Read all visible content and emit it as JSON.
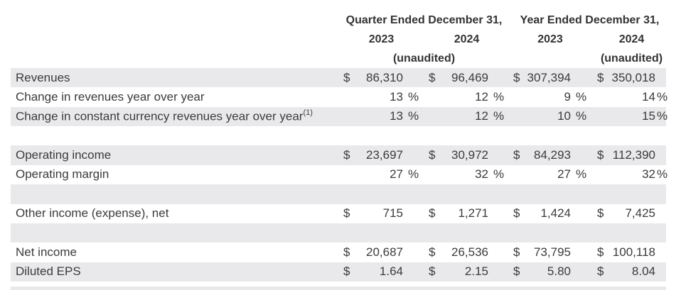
{
  "header": {
    "quarter_title": "Quarter Ended December 31,",
    "year_title": "Year Ended December 31,",
    "quarter_col_2023": "2023",
    "quarter_col_2024": "2024",
    "year_col_2023": "2023",
    "year_col_2024": "2024",
    "quarter_unaudited": "(unaudited)",
    "year_unaudited": "(unaudited)"
  },
  "table": {
    "currency_symbol": "$",
    "percent_symbol": "%",
    "rows": [
      {
        "type": "money",
        "shade": true,
        "label": "Revenues",
        "values": [
          "86,310",
          "96,469",
          "307,394",
          "350,018"
        ]
      },
      {
        "type": "percent",
        "shade": false,
        "label": "Change in revenues year over year",
        "values": [
          "13",
          "12",
          "9",
          "14"
        ]
      },
      {
        "type": "percent",
        "shade": true,
        "label": "Change in constant currency revenues year over year",
        "sup": "(1)",
        "values": [
          "13",
          "12",
          "10",
          "15"
        ]
      },
      {
        "type": "blank",
        "shade": false
      },
      {
        "type": "money",
        "shade": true,
        "label": "Operating income",
        "values": [
          "23,697",
          "30,972",
          "84,293",
          "112,390"
        ]
      },
      {
        "type": "percent",
        "shade": false,
        "label": "Operating margin",
        "values": [
          "27",
          "32",
          "27",
          "32"
        ]
      },
      {
        "type": "blank",
        "shade": true
      },
      {
        "type": "money",
        "shade": false,
        "label": "Other income (expense), net",
        "values": [
          "715",
          "1,271",
          "1,424",
          "7,425"
        ]
      },
      {
        "type": "blank",
        "shade": true
      },
      {
        "type": "money",
        "shade": false,
        "label": "Net income",
        "values": [
          "20,687",
          "26,536",
          "73,795",
          "100,118"
        ]
      },
      {
        "type": "money",
        "shade": true,
        "label": "Diluted EPS",
        "values": [
          "1.64",
          "2.15",
          "5.80",
          "8.04"
        ]
      }
    ]
  },
  "colors": {
    "row_shade": "#e9e9eb",
    "body_text": "#3b3b3b",
    "header_text": "#333333"
  }
}
